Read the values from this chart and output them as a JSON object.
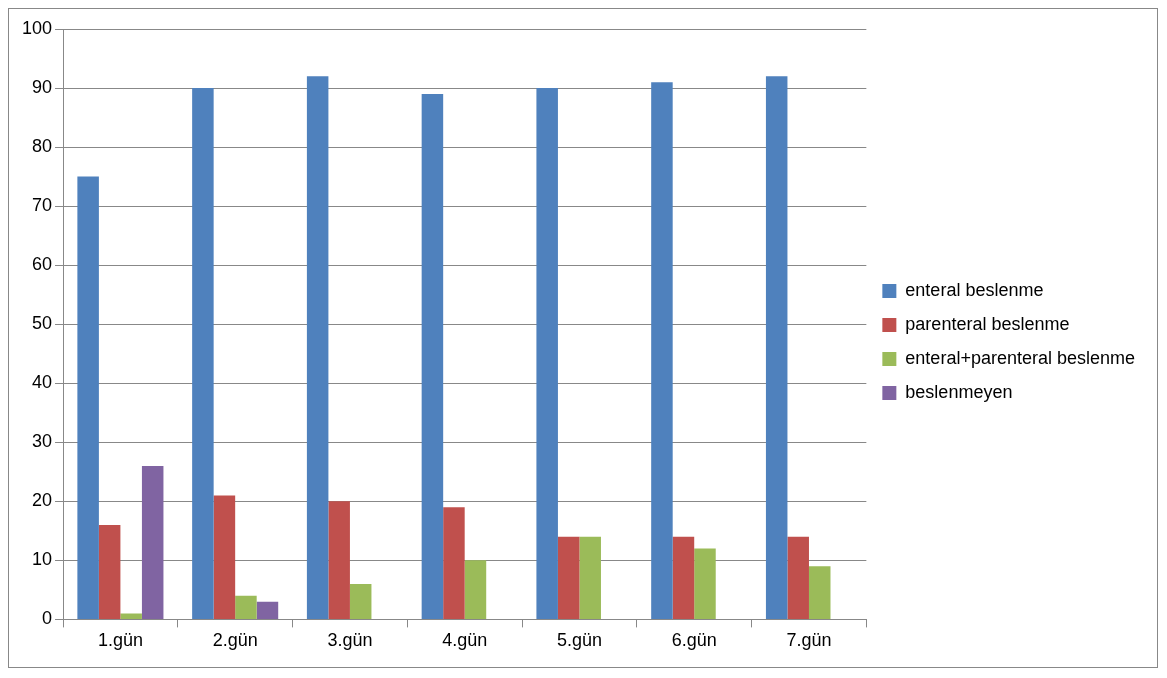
{
  "chart_data": {
    "type": "bar",
    "categories": [
      "1.gün",
      "2.gün",
      "3.gün",
      "4.gün",
      "5.gün",
      "6.gün",
      "7.gün"
    ],
    "series": [
      {
        "name": "enteral beslenme",
        "color": "#4f81bd",
        "values": [
          75,
          90,
          92,
          89,
          90,
          91,
          92
        ]
      },
      {
        "name": "parenteral beslenme",
        "color": "#c0504d",
        "values": [
          16,
          21,
          20,
          19,
          14,
          14,
          14
        ]
      },
      {
        "name": "enteral+parenteral beslenme",
        "color": "#9bbb59",
        "values": [
          1,
          4,
          6,
          10,
          14,
          12,
          9
        ]
      },
      {
        "name": "beslenmeyen",
        "color": "#8064a2",
        "values": [
          26,
          3,
          null,
          null,
          null,
          null,
          null
        ]
      }
    ],
    "ylim": [
      0,
      100
    ],
    "yticks": [
      0,
      10,
      20,
      30,
      40,
      50,
      60,
      70,
      80,
      90,
      100
    ],
    "grid": "y",
    "legend": "right"
  }
}
